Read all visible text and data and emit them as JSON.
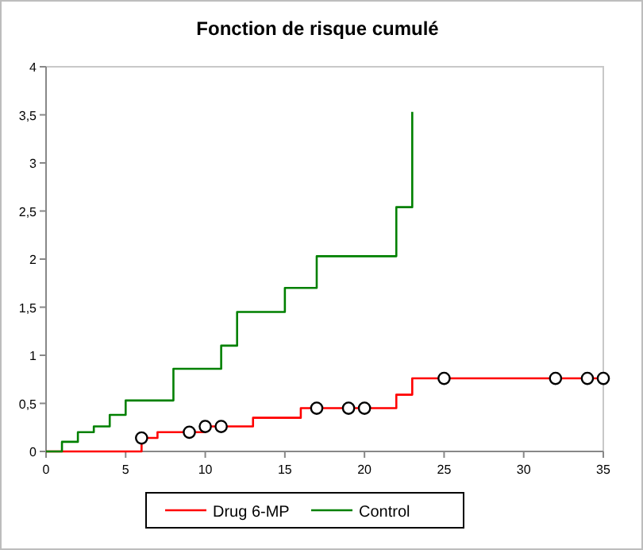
{
  "chart_data": {
    "type": "step",
    "title": "Fonction de risque cumulé",
    "xlim": [
      0,
      35
    ],
    "xticks": [
      0,
      5,
      10,
      15,
      20,
      25,
      30,
      35
    ],
    "ylim": [
      0,
      4
    ],
    "yticks": [
      0,
      {
        "value": 0.5,
        "label": "0,5"
      },
      1,
      {
        "value": 1.5,
        "label": "1,5"
      },
      2,
      {
        "value": 2.5,
        "label": "2,5"
      },
      3,
      {
        "value": 3.5,
        "label": "3,5"
      },
      4
    ],
    "grid": false,
    "legend": "bottom",
    "marker": "none",
    "line_style": "solid",
    "series": [
      {
        "name": "Drug 6-MP",
        "color": "#ff0000",
        "x": [
          0,
          6,
          7,
          10,
          13,
          16,
          22,
          23,
          35
        ],
        "values": [
          0,
          0.14,
          0.2,
          0.26,
          0.35,
          0.45,
          0.59,
          0.76,
          0.76
        ]
      },
      {
        "name": "Control",
        "color": "#008000",
        "x": [
          0,
          1,
          2,
          3,
          4,
          5,
          8,
          11,
          12,
          15,
          17,
          22,
          23
        ],
        "values": [
          0,
          0.1,
          0.2,
          0.26,
          0.38,
          0.53,
          0.86,
          1.1,
          1.45,
          1.7,
          2.03,
          2.54,
          3.53
        ]
      },
      {
        "type": "scatter",
        "color": "#000000",
        "marker": "circle",
        "x": [
          6,
          9,
          10,
          11,
          17,
          19,
          20,
          25,
          32,
          34,
          35
        ],
        "values": [
          0.14,
          0.2,
          0.26,
          0.26,
          0.45,
          0.45,
          0.45,
          0.76,
          0.76,
          0.76,
          0.76
        ]
      }
    ]
  }
}
